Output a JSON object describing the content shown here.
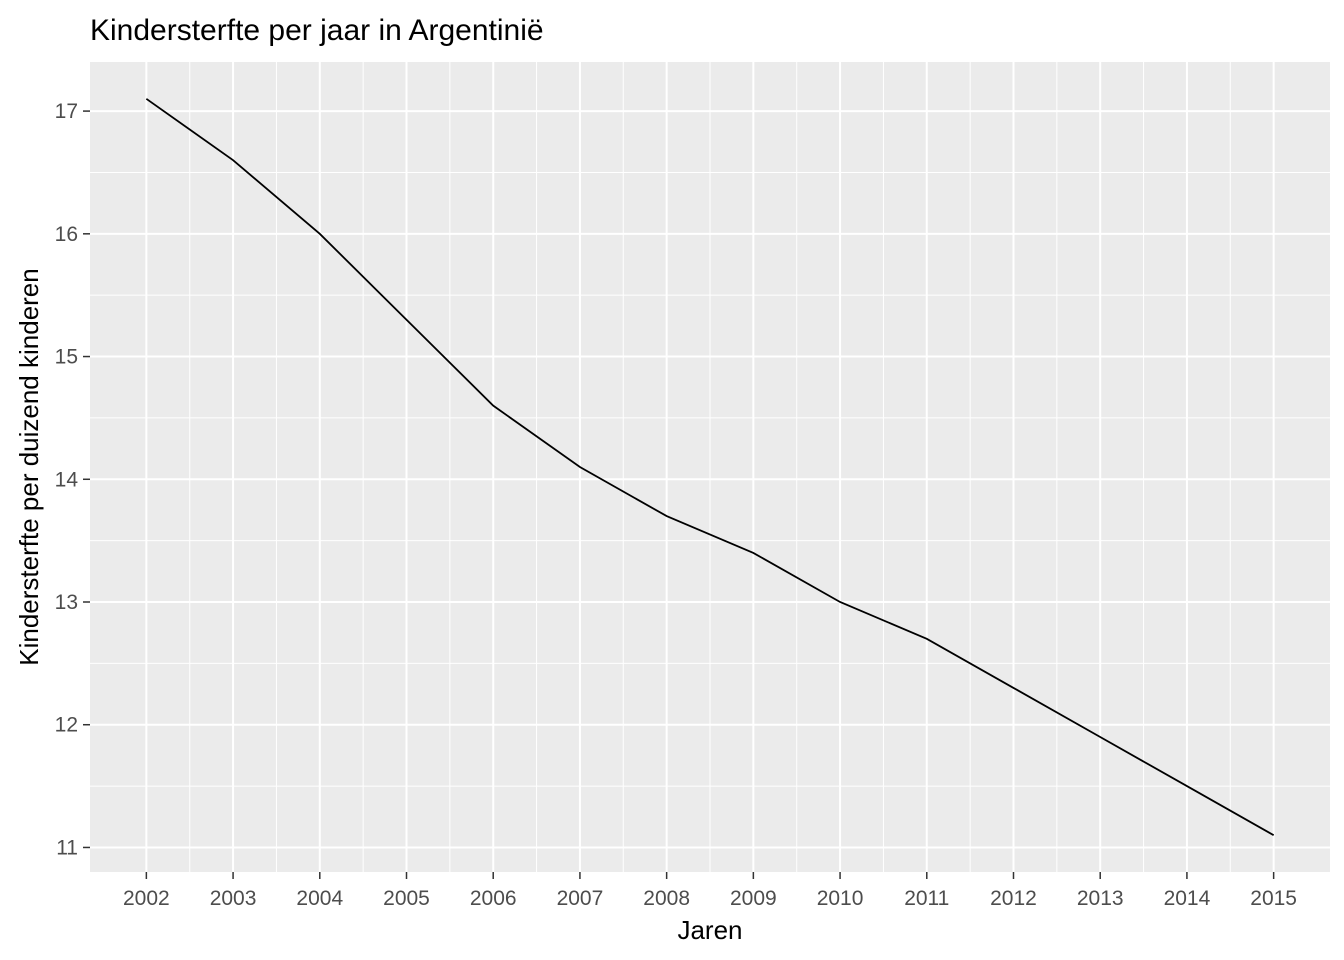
{
  "chart_data": {
    "type": "line",
    "title": "Kindersterfte per jaar in Argentinië",
    "xlabel": "Jaren",
    "ylabel": "Kindersterfte per duizend kinderen",
    "x": [
      2002,
      2003,
      2004,
      2005,
      2006,
      2007,
      2008,
      2009,
      2010,
      2011,
      2012,
      2013,
      2014,
      2015
    ],
    "series": [
      {
        "values": [
          17.1,
          16.6,
          16.0,
          15.3,
          14.6,
          14.1,
          13.7,
          13.4,
          13.0,
          12.7,
          12.3,
          11.9,
          11.5,
          11.1
        ]
      }
    ],
    "xticks": [
      "2002",
      "2003",
      "2004",
      "2005",
      "2006",
      "2007",
      "2008",
      "2009",
      "2010",
      "2011",
      "2012",
      "2013",
      "2014",
      "2015"
    ],
    "yticks": [
      "11",
      "12",
      "13",
      "14",
      "15",
      "16",
      "17"
    ],
    "xlim": [
      2001.35,
      2015.65
    ],
    "ylim": [
      10.8,
      17.4
    ],
    "grid": true,
    "colors": {
      "panel": "#ebebeb",
      "grid": "#ffffff",
      "line": "#000000",
      "tick_text": "#4d4d4d"
    }
  }
}
